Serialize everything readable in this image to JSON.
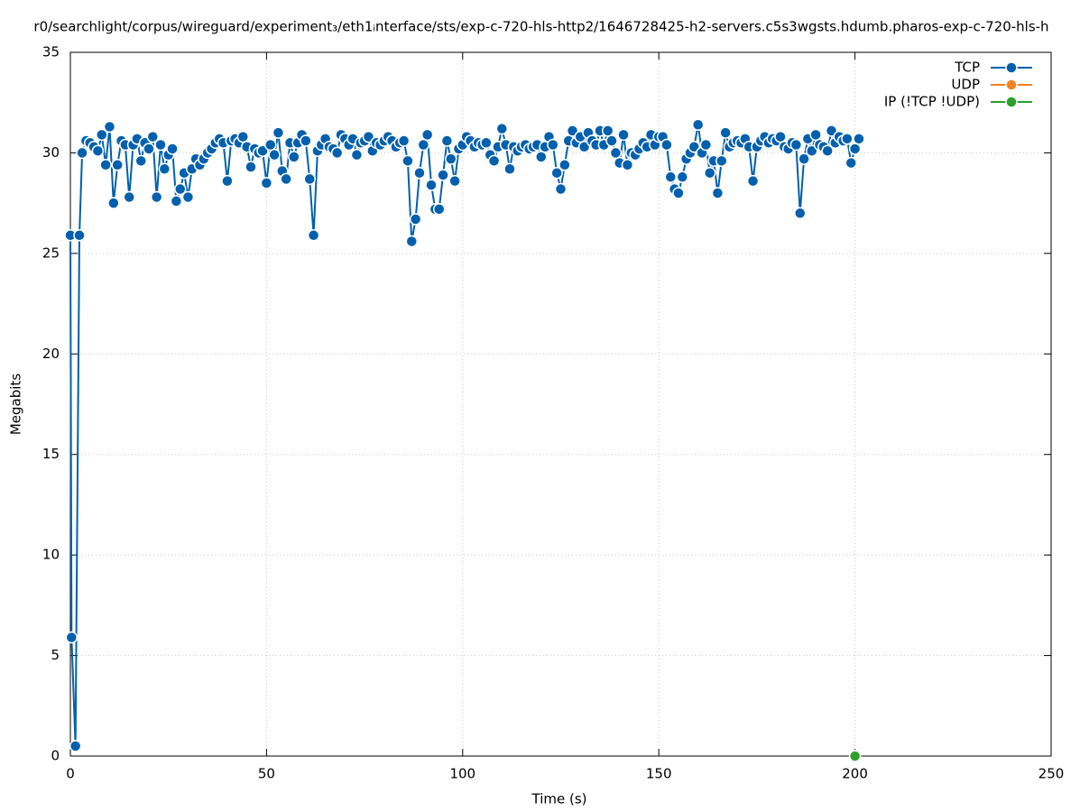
{
  "chart_data": {
    "type": "line",
    "title": "r0/searchlight/corpus/wireguard/experiment₃/eth1ᵢnterface/sts/exp-c-720-hls-http2/1646728425-h2-servers.c5s3wgsts.hdumb.pharos-exp-c-720-hls-h",
    "x_label": "Time (s)",
    "y_label": "Megabits",
    "xlim": [
      0,
      250
    ],
    "xticks": [
      0,
      50,
      100,
      150,
      200,
      250
    ],
    "ylim": [
      0,
      35
    ],
    "yticks": [
      0,
      5,
      10,
      15,
      20,
      25,
      30,
      35
    ],
    "grid": true,
    "legend": "top-right",
    "series": [
      {
        "name": "TCP",
        "color": "#0060ad",
        "x": [
          0,
          0.3,
          1.3,
          2.3,
          3,
          4,
          5,
          6,
          7,
          8,
          9,
          10,
          11,
          12,
          13,
          14,
          15,
          16,
          17,
          18,
          19,
          20,
          21,
          22,
          23,
          24,
          25,
          26,
          27,
          28,
          29,
          30,
          31,
          32,
          33,
          34,
          35,
          36,
          37,
          38,
          39,
          40,
          41,
          42,
          43,
          44,
          45,
          46,
          47,
          48,
          49,
          50,
          51,
          52,
          53,
          54,
          55,
          56,
          57,
          58,
          59,
          60,
          61,
          62,
          63,
          64,
          65,
          66,
          67,
          68,
          69,
          70,
          71,
          72,
          73,
          74,
          75,
          76,
          77,
          78,
          79,
          80,
          81,
          82,
          83,
          84,
          85,
          86,
          87,
          88,
          89,
          90,
          91,
          92,
          93,
          94,
          95,
          96,
          97,
          98,
          99,
          100,
          101,
          102,
          103,
          104,
          105,
          106,
          107,
          108,
          109,
          110,
          111,
          112,
          113,
          114,
          115,
          116,
          117,
          118,
          119,
          120,
          121,
          122,
          123,
          124,
          125,
          126,
          127,
          128,
          129,
          130,
          131,
          132,
          133,
          134,
          135,
          136,
          137,
          138,
          139,
          140,
          141,
          142,
          143,
          144,
          145,
          146,
          147,
          148,
          149,
          150,
          151,
          152,
          153,
          154,
          155,
          156,
          157,
          158,
          159,
          160,
          161,
          162,
          163,
          164,
          165,
          166,
          167,
          168,
          169,
          170,
          171,
          172,
          173,
          174,
          175,
          176,
          177,
          178,
          179,
          180,
          181,
          182,
          183,
          184,
          185,
          186,
          187,
          188,
          189,
          190,
          191,
          192,
          193,
          194,
          195,
          196,
          197,
          198,
          199,
          200,
          201
        ],
        "values": [
          25.9,
          5.9,
          0.5,
          25.9,
          30.0,
          30.6,
          30.5,
          30.3,
          30.1,
          30.9,
          29.4,
          31.3,
          27.5,
          29.4,
          30.6,
          30.4,
          27.8,
          30.4,
          30.7,
          29.6,
          30.5,
          30.2,
          30.8,
          27.8,
          30.4,
          29.2,
          29.9,
          30.2,
          27.6,
          28.2,
          29.0,
          27.8,
          29.2,
          29.7,
          29.4,
          29.7,
          30.0,
          30.2,
          30.5,
          30.7,
          30.5,
          28.6,
          30.6,
          30.7,
          30.5,
          30.8,
          30.3,
          29.3,
          30.2,
          30.0,
          30.1,
          28.5,
          30.4,
          29.9,
          31.0,
          29.1,
          28.7,
          30.5,
          29.8,
          30.5,
          30.9,
          30.6,
          28.7,
          25.9,
          30.1,
          30.4,
          30.7,
          30.3,
          30.2,
          30.0,
          30.9,
          30.7,
          30.4,
          30.7,
          29.9,
          30.5,
          30.6,
          30.8,
          30.1,
          30.5,
          30.4,
          30.6,
          30.8,
          30.6,
          30.3,
          30.5,
          30.6,
          29.6,
          25.6,
          26.7,
          29.0,
          30.4,
          30.9,
          28.4,
          27.2,
          27.2,
          28.9,
          30.6,
          29.7,
          28.6,
          30.2,
          30.4,
          30.8,
          30.6,
          30.3,
          30.5,
          30.4,
          30.5,
          29.9,
          29.6,
          30.3,
          31.2,
          30.4,
          29.2,
          30.3,
          30.1,
          30.3,
          30.4,
          30.2,
          30.3,
          30.4,
          29.8,
          30.3,
          30.8,
          30.4,
          29.0,
          28.2,
          29.4,
          30.6,
          31.1,
          30.5,
          30.8,
          30.3,
          31.0,
          30.6,
          30.4,
          31.1,
          30.4,
          31.1,
          30.6,
          30.0,
          29.5,
          30.9,
          29.4,
          30.0,
          29.9,
          30.2,
          30.5,
          30.3,
          30.9,
          30.4,
          30.8,
          30.8,
          30.4,
          28.8,
          28.2,
          28.0,
          28.8,
          29.7,
          30.0,
          30.3,
          31.4,
          30.0,
          30.4,
          29.0,
          29.6,
          28.0,
          29.6,
          31.0,
          30.3,
          30.5,
          30.6,
          30.5,
          30.7,
          30.3,
          28.6,
          30.3,
          30.6,
          30.8,
          30.5,
          30.7,
          30.6,
          30.8,
          30.3,
          30.2,
          30.5,
          30.4,
          27.0,
          29.7,
          30.7,
          30.1,
          30.9,
          30.4,
          30.3,
          30.1,
          31.1,
          30.5,
          30.8,
          30.6,
          30.7,
          29.5,
          30.2,
          30.7
        ]
      },
      {
        "name": "UDP",
        "color": "#f58220",
        "x": [
          200
        ],
        "values": [
          0
        ]
      },
      {
        "name": "IP (!TCP  !UDP)",
        "color": "#2ca02c",
        "x": [
          200
        ],
        "values": [
          0
        ]
      }
    ]
  }
}
